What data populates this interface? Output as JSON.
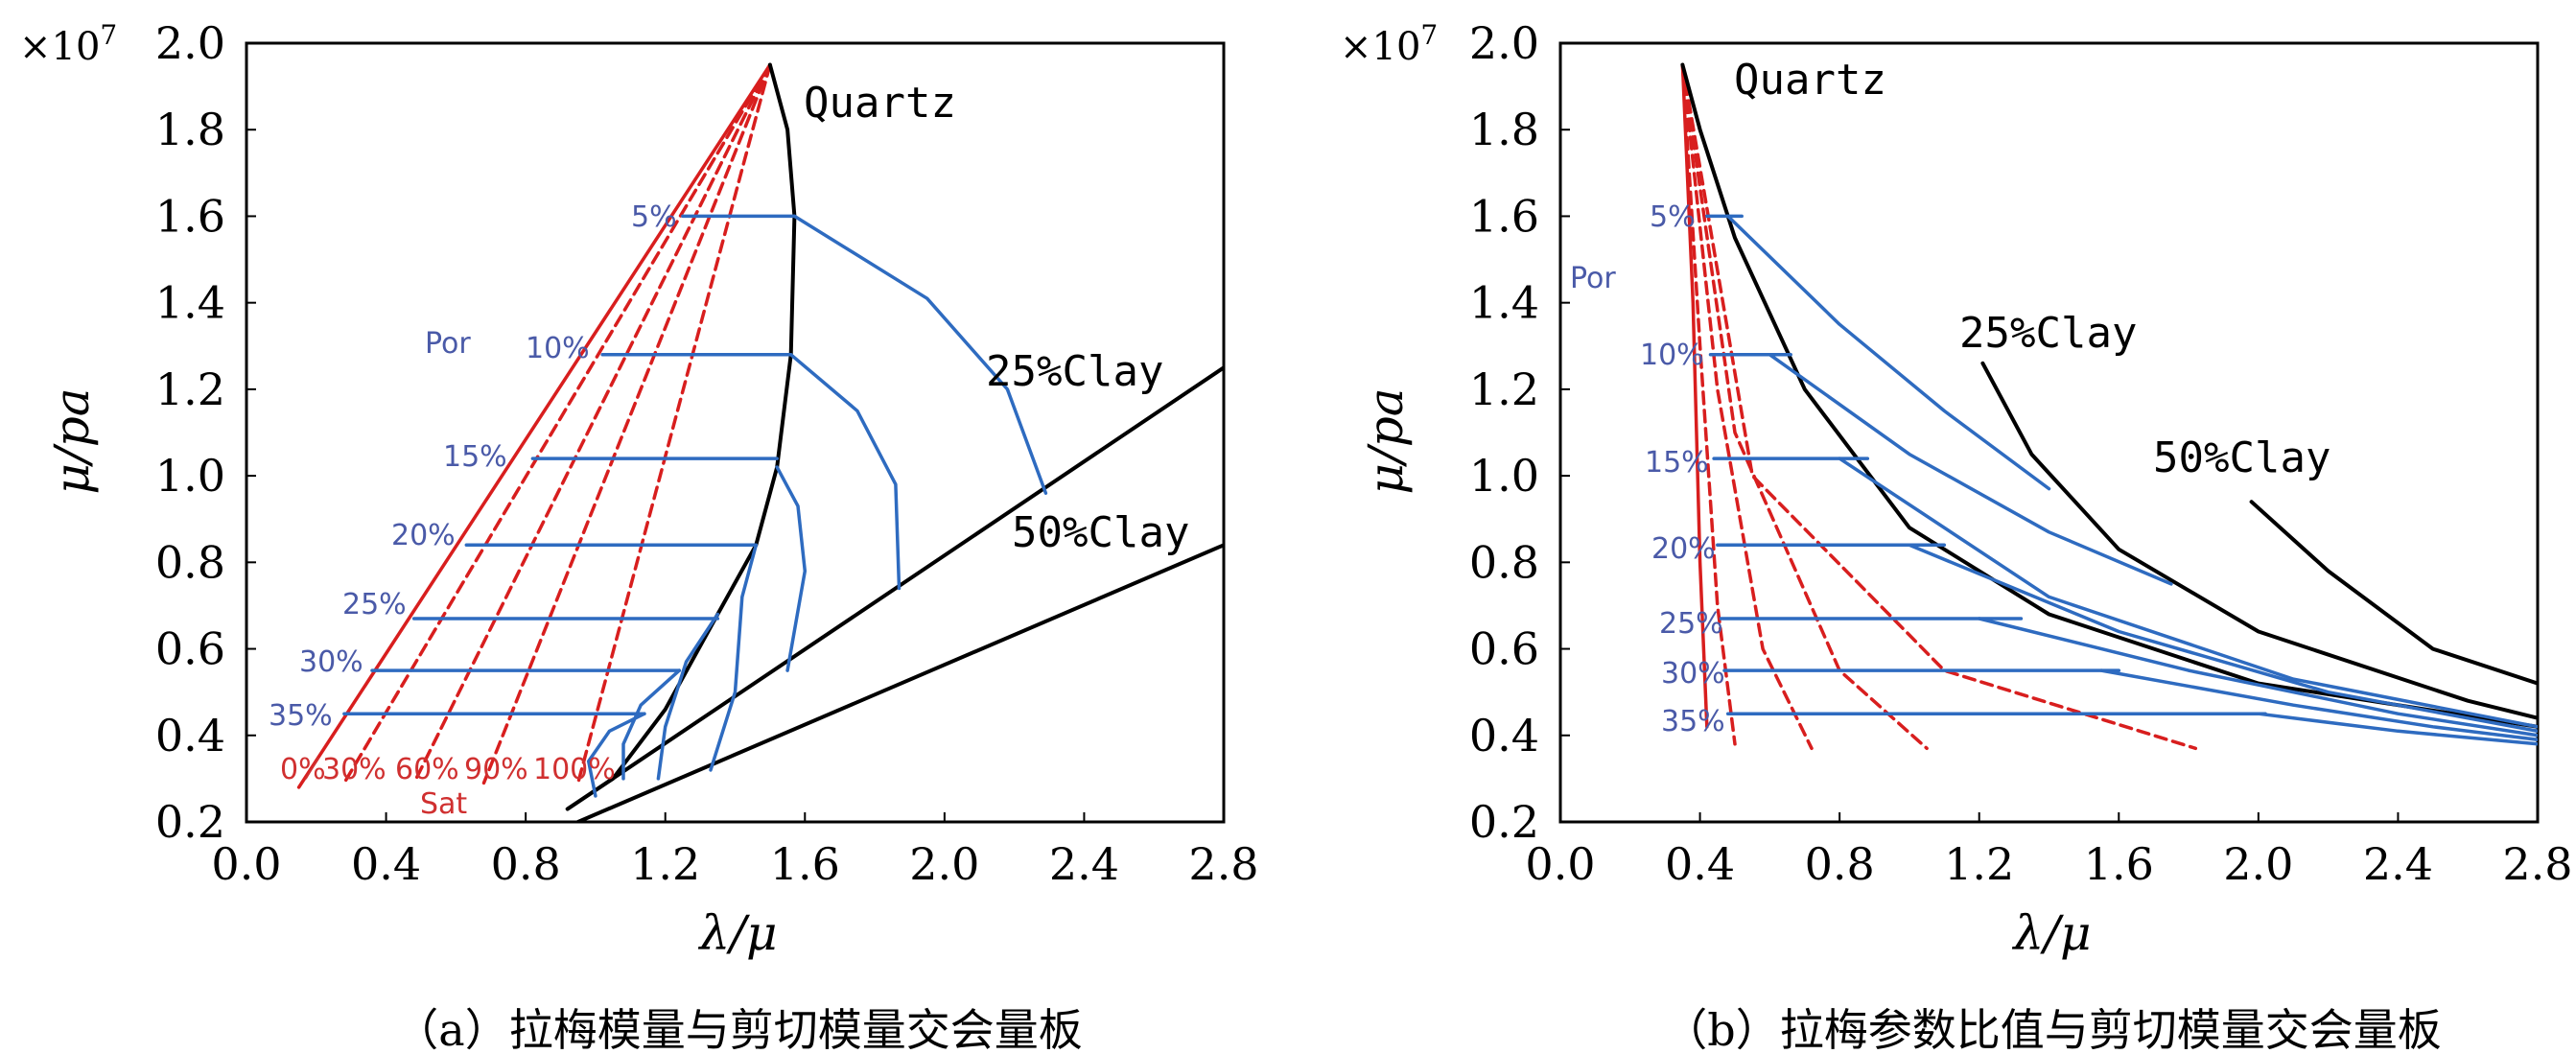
{
  "colors": {
    "red": "#d81e1e",
    "blue": "#2e6bc0",
    "black": "#000000",
    "por_text": "#4a5aa8"
  },
  "chart_data": [
    {
      "type": "line",
      "caption": "（a）拉梅模量与剪切模量交会量板",
      "xlabel": "λ/μ",
      "ylabel": "μ/pa",
      "y_exponent": "×10",
      "y_exponent_power": "7",
      "xlim": [
        0.0,
        2.8
      ],
      "ylim": [
        0.2,
        2.0
      ],
      "xticks": [
        "0.0",
        "0.4",
        "0.8",
        "1.2",
        "1.6",
        "2.0",
        "2.4",
        "2.8"
      ],
      "yticks": [
        "0.2",
        "0.4",
        "0.6",
        "0.8",
        "1.0",
        "1.2",
        "1.4",
        "1.6",
        "1.8",
        "2.0"
      ],
      "annotations": {
        "quartz": "Quartz",
        "clay25": "25%Clay",
        "clay50": "50%Clay",
        "por": "Por",
        "sat": "Sat",
        "porosity": [
          "5%",
          "10%",
          "15%",
          "20%",
          "25%",
          "30%",
          "35%"
        ],
        "saturation": [
          "0%",
          "30%",
          "60%",
          "90%",
          "100%"
        ]
      },
      "series": [
        {
          "color": "red",
          "dash": false,
          "x": [
            1.5,
            0.15
          ],
          "y": [
            1.95,
            0.28
          ]
        },
        {
          "color": "red",
          "dash": true,
          "x": [
            1.5,
            0.28
          ],
          "y": [
            1.95,
            0.29
          ]
        },
        {
          "color": "red",
          "dash": true,
          "x": [
            1.5,
            0.48
          ],
          "y": [
            1.95,
            0.29
          ]
        },
        {
          "color": "red",
          "dash": true,
          "x": [
            1.5,
            0.68
          ],
          "y": [
            1.95,
            0.29
          ]
        },
        {
          "color": "red",
          "dash": true,
          "x": [
            1.5,
            0.95
          ],
          "y": [
            1.95,
            0.29
          ]
        },
        {
          "color": "black",
          "dash": false,
          "x": [
            1.5,
            1.55,
            1.57,
            1.56,
            1.52,
            1.46,
            1.35,
            1.2,
            1.05,
            0.92
          ],
          "y": [
            1.95,
            1.8,
            1.6,
            1.28,
            1.02,
            0.84,
            0.68,
            0.46,
            0.3,
            0.23
          ]
        },
        {
          "color": "black",
          "dash": false,
          "x": [
            0.92,
            2.8
          ],
          "y": [
            0.23,
            1.25
          ]
        },
        {
          "color": "black",
          "dash": false,
          "x": [
            0.95,
            2.8
          ],
          "y": [
            0.2,
            0.84
          ]
        },
        {
          "color": "blue",
          "dash": false,
          "x": [
            1.57,
            1.95,
            2.18,
            2.29
          ],
          "y": [
            1.6,
            1.41,
            1.2,
            0.96
          ]
        },
        {
          "color": "blue",
          "dash": false,
          "x": [
            1.56,
            1.75,
            1.86,
            1.87
          ],
          "y": [
            1.28,
            1.15,
            0.98,
            0.74
          ]
        },
        {
          "color": "blue",
          "dash": false,
          "x": [
            1.52,
            1.58,
            1.6,
            1.55
          ],
          "y": [
            1.02,
            0.93,
            0.78,
            0.55
          ]
        },
        {
          "color": "blue",
          "dash": false,
          "x": [
            1.46,
            1.42,
            1.4,
            1.33
          ],
          "y": [
            0.84,
            0.72,
            0.5,
            0.32
          ]
        },
        {
          "color": "blue",
          "dash": false,
          "x": [
            1.35,
            1.26,
            1.2,
            1.18
          ],
          "y": [
            0.68,
            0.57,
            0.42,
            0.3
          ]
        },
        {
          "color": "blue",
          "dash": false,
          "x": [
            1.24,
            1.13,
            1.08,
            1.08
          ],
          "y": [
            0.55,
            0.47,
            0.38,
            0.3
          ]
        },
        {
          "color": "blue",
          "dash": false,
          "x": [
            1.14,
            1.04,
            0.98,
            1.0
          ],
          "y": [
            0.45,
            0.41,
            0.34,
            0.26
          ]
        },
        {
          "color": "blue",
          "dash": false,
          "x": [
            1.25,
            1.57
          ],
          "y": [
            1.6,
            1.6
          ]
        },
        {
          "color": "blue",
          "dash": false,
          "x": [
            1.02,
            1.56
          ],
          "y": [
            1.28,
            1.28
          ]
        },
        {
          "color": "blue",
          "dash": false,
          "x": [
            0.82,
            1.52
          ],
          "y": [
            1.04,
            1.04
          ]
        },
        {
          "color": "blue",
          "dash": false,
          "x": [
            0.63,
            1.46
          ],
          "y": [
            0.84,
            0.84
          ]
        },
        {
          "color": "blue",
          "dash": false,
          "x": [
            0.48,
            1.35
          ],
          "y": [
            0.67,
            0.67
          ]
        },
        {
          "color": "blue",
          "dash": false,
          "x": [
            0.36,
            1.24
          ],
          "y": [
            0.55,
            0.55
          ]
        },
        {
          "color": "blue",
          "dash": false,
          "x": [
            0.28,
            1.14
          ],
          "y": [
            0.45,
            0.45
          ]
        }
      ]
    },
    {
      "type": "line",
      "caption": "（b）拉梅参数比值与剪切模量交会量板",
      "xlabel": "λ/μ",
      "ylabel": "μ/pa",
      "y_exponent": "×10",
      "y_exponent_power": "7",
      "xlim": [
        0.0,
        2.8
      ],
      "ylim": [
        0.2,
        2.0
      ],
      "xticks": [
        "0.0",
        "0.4",
        "0.8",
        "1.2",
        "1.6",
        "2.0",
        "2.4",
        "2.8"
      ],
      "yticks": [
        "0.2",
        "0.4",
        "0.6",
        "0.8",
        "1.0",
        "1.2",
        "1.4",
        "1.6",
        "1.8",
        "2.0"
      ],
      "annotations": {
        "quartz": "Quartz",
        "clay25": "25%Clay",
        "clay50": "50%Clay",
        "por": "Por",
        "porosity": [
          "5%",
          "10%",
          "15%",
          "20%",
          "25%",
          "30%",
          "35%"
        ]
      },
      "series": [
        {
          "color": "red",
          "dash": false,
          "x": [
            0.35,
            0.38,
            0.4,
            0.42
          ],
          "y": [
            1.95,
            1.4,
            0.8,
            0.42
          ]
        },
        {
          "color": "red",
          "dash": true,
          "x": [
            0.35,
            0.4,
            0.45,
            0.5
          ],
          "y": [
            1.95,
            1.3,
            0.7,
            0.38
          ]
        },
        {
          "color": "red",
          "dash": true,
          "x": [
            0.35,
            0.45,
            0.58,
            0.72
          ],
          "y": [
            1.95,
            1.2,
            0.6,
            0.37
          ]
        },
        {
          "color": "red",
          "dash": true,
          "x": [
            0.35,
            0.5,
            0.8,
            1.05
          ],
          "y": [
            1.95,
            1.1,
            0.55,
            0.37
          ]
        },
        {
          "color": "red",
          "dash": true,
          "x": [
            0.35,
            0.55,
            1.1,
            1.82
          ],
          "y": [
            1.95,
            1.0,
            0.55,
            0.37
          ]
        },
        {
          "color": "black",
          "dash": false,
          "x": [
            0.35,
            0.4,
            0.5,
            0.7,
            1.0,
            1.4,
            2.0,
            2.8
          ],
          "y": [
            1.95,
            1.8,
            1.55,
            1.2,
            0.88,
            0.68,
            0.52,
            0.42
          ]
        },
        {
          "color": "black",
          "dash": false,
          "x": [
            1.21,
            1.35,
            1.6,
            2.0,
            2.6,
            2.8
          ],
          "y": [
            1.26,
            1.05,
            0.83,
            0.64,
            0.48,
            0.44
          ]
        },
        {
          "color": "black",
          "dash": false,
          "x": [
            1.98,
            2.2,
            2.5,
            2.8
          ],
          "y": [
            0.94,
            0.78,
            0.6,
            0.52
          ]
        },
        {
          "color": "blue",
          "dash": false,
          "x": [
            0.48,
            0.8,
            1.1,
            1.4
          ],
          "y": [
            1.6,
            1.35,
            1.15,
            0.97
          ]
        },
        {
          "color": "blue",
          "dash": false,
          "x": [
            0.6,
            1.0,
            1.4,
            1.75
          ],
          "y": [
            1.28,
            1.05,
            0.87,
            0.75
          ]
        },
        {
          "color": "blue",
          "dash": false,
          "x": [
            0.8,
            1.4,
            2.1,
            2.8
          ],
          "y": [
            1.04,
            0.72,
            0.53,
            0.42
          ]
        },
        {
          "color": "blue",
          "dash": false,
          "x": [
            1.0,
            1.6,
            2.2,
            2.8
          ],
          "y": [
            0.84,
            0.64,
            0.5,
            0.41
          ]
        },
        {
          "color": "blue",
          "dash": false,
          "x": [
            1.2,
            1.8,
            2.4,
            2.8
          ],
          "y": [
            0.67,
            0.55,
            0.45,
            0.4
          ]
        },
        {
          "color": "blue",
          "dash": false,
          "x": [
            1.55,
            2.1,
            2.5,
            2.8
          ],
          "y": [
            0.55,
            0.47,
            0.42,
            0.39
          ]
        },
        {
          "color": "blue",
          "dash": false,
          "x": [
            2.0,
            2.4,
            2.8
          ],
          "y": [
            0.45,
            0.41,
            0.38
          ]
        },
        {
          "color": "blue",
          "dash": false,
          "x": [
            0.42,
            0.52
          ],
          "y": [
            1.6,
            1.6
          ]
        },
        {
          "color": "blue",
          "dash": false,
          "x": [
            0.43,
            0.66
          ],
          "y": [
            1.28,
            1.28
          ]
        },
        {
          "color": "blue",
          "dash": false,
          "x": [
            0.44,
            0.88
          ],
          "y": [
            1.04,
            1.04
          ]
        },
        {
          "color": "blue",
          "dash": false,
          "x": [
            0.45,
            1.1
          ],
          "y": [
            0.84,
            0.84
          ]
        },
        {
          "color": "blue",
          "dash": false,
          "x": [
            0.46,
            1.32
          ],
          "y": [
            0.67,
            0.67
          ]
        },
        {
          "color": "blue",
          "dash": false,
          "x": [
            0.47,
            1.6
          ],
          "y": [
            0.55,
            0.55
          ]
        },
        {
          "color": "blue",
          "dash": false,
          "x": [
            0.48,
            2.02
          ],
          "y": [
            0.45,
            0.45
          ]
        }
      ]
    }
  ]
}
